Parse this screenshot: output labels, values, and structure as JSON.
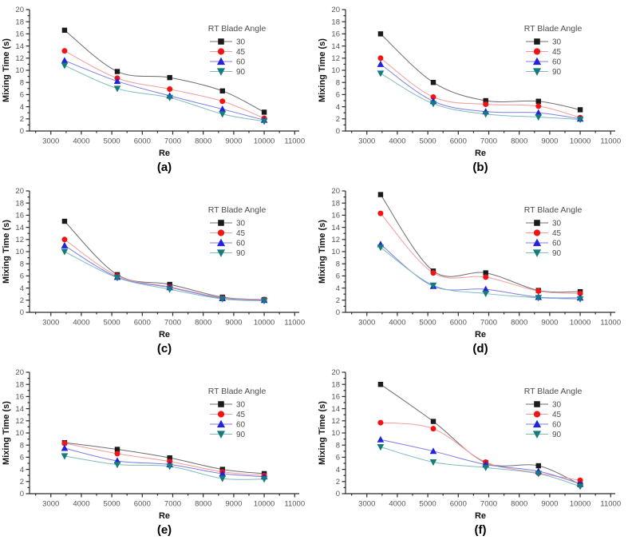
{
  "page": {
    "background": "#ffffff"
  },
  "axes_config": {
    "xlabel": "Re",
    "ylabel": "Mixing Time (s)",
    "xlim": [
      2300,
      11150
    ],
    "ylim": [
      0,
      20
    ],
    "x_major_ticks": [
      3000,
      4000,
      5000,
      6000,
      7000,
      8000,
      9000,
      10000,
      11000
    ],
    "x_minor_step": 500,
    "y_major_step": 2,
    "y_minor_step": 1,
    "grid": "off",
    "tick_label_color": "#555555",
    "axis_color": "#2b2b2b",
    "label_color": "#111111"
  },
  "legend": {
    "title": "RT Blade Angle",
    "position": "upper-right-inside",
    "text_color": "#4d4d4d",
    "items": [
      {
        "label": "30",
        "marker": "square",
        "marker_color": "#1a1a1a",
        "line_color": "#6e6e6e"
      },
      {
        "label": "45",
        "marker": "circle",
        "marker_color": "#f21414",
        "line_color": "#f59a9a"
      },
      {
        "label": "60",
        "marker": "triangle-up",
        "marker_color": "#2323dd",
        "line_color": "#7d7de8"
      },
      {
        "label": "90",
        "marker": "triangle-down",
        "marker_color": "#137c7c",
        "line_color": "#7ebcbc"
      }
    ]
  },
  "chart_data": [
    {
      "type": "line",
      "panel_label": "(a)",
      "xlabel": "Re",
      "ylabel": "Mixing Time (s)",
      "x": [
        3450,
        5180,
        6900,
        8630,
        10000
      ],
      "series": [
        {
          "name": "30",
          "values": [
            16.6,
            9.8,
            8.8,
            6.6,
            3.1
          ]
        },
        {
          "name": "45",
          "values": [
            13.2,
            8.7,
            6.9,
            4.9,
            2.1
          ]
        },
        {
          "name": "60",
          "values": [
            11.6,
            8.2,
            5.8,
            3.6,
            1.8
          ]
        },
        {
          "name": "90",
          "values": [
            10.8,
            7.0,
            5.5,
            2.8,
            1.6
          ]
        }
      ]
    },
    {
      "type": "line",
      "panel_label": "(b)",
      "xlabel": "Re",
      "ylabel": "Mixing Time (s)",
      "x": [
        3450,
        5180,
        6900,
        8630,
        10000
      ],
      "series": [
        {
          "name": "30",
          "values": [
            16.0,
            8.0,
            5.0,
            4.9,
            3.5
          ]
        },
        {
          "name": "45",
          "values": [
            12.0,
            5.6,
            4.4,
            4.1,
            2.2
          ]
        },
        {
          "name": "60",
          "values": [
            11.0,
            4.9,
            3.2,
            3.0,
            2.0
          ]
        },
        {
          "name": "90",
          "values": [
            9.5,
            4.5,
            2.8,
            2.3,
            1.9
          ]
        }
      ]
    },
    {
      "type": "line",
      "panel_label": "(c)",
      "xlabel": "Re",
      "ylabel": "Mixing Time (s)",
      "x": [
        3450,
        5180,
        6900,
        8630,
        10000
      ],
      "series": [
        {
          "name": "30",
          "values": [
            15.0,
            6.2,
            4.6,
            2.5,
            2.1
          ]
        },
        {
          "name": "45",
          "values": [
            12.0,
            6.0,
            4.2,
            2.4,
            2.1
          ]
        },
        {
          "name": "60",
          "values": [
            11.0,
            5.8,
            4.1,
            2.3,
            2.0
          ]
        },
        {
          "name": "90",
          "values": [
            10.0,
            5.7,
            3.8,
            2.2,
            1.9
          ]
        }
      ]
    },
    {
      "type": "line",
      "panel_label": "(d)",
      "xlabel": "Re",
      "ylabel": "Mixing Time (s)",
      "x": [
        3450,
        5180,
        6900,
        8630,
        10000
      ],
      "series": [
        {
          "name": "30",
          "values": [
            19.4,
            6.8,
            6.5,
            3.6,
            3.4
          ]
        },
        {
          "name": "45",
          "values": [
            16.3,
            6.5,
            5.8,
            3.5,
            3.1
          ]
        },
        {
          "name": "60",
          "values": [
            11.2,
            4.3,
            3.8,
            2.5,
            2.4
          ]
        },
        {
          "name": "90",
          "values": [
            10.7,
            4.45,
            3.1,
            2.4,
            2.2
          ]
        }
      ]
    },
    {
      "type": "line",
      "panel_label": "(e)",
      "xlabel": "Re",
      "ylabel": "Mixing Time (s)",
      "x": [
        3450,
        5180,
        6900,
        8630,
        10000
      ],
      "series": [
        {
          "name": "30",
          "values": [
            8.4,
            7.3,
            5.9,
            4.0,
            3.3
          ]
        },
        {
          "name": "45",
          "values": [
            8.3,
            6.6,
            5.3,
            3.6,
            3.0
          ]
        },
        {
          "name": "60",
          "values": [
            7.5,
            5.4,
            4.8,
            3.3,
            2.8
          ]
        },
        {
          "name": "90",
          "values": [
            6.2,
            4.8,
            4.5,
            2.5,
            2.4
          ]
        }
      ]
    },
    {
      "type": "line",
      "panel_label": "(f)",
      "xlabel": "Re",
      "ylabel": "Mixing Time (s)",
      "x": [
        3450,
        5180,
        6900,
        8630,
        10000
      ],
      "series": [
        {
          "name": "30",
          "values": [
            18.0,
            11.9,
            5.1,
            4.6,
            1.5
          ]
        },
        {
          "name": "45",
          "values": [
            11.7,
            10.7,
            5.2,
            3.4,
            2.2
          ]
        },
        {
          "name": "60",
          "values": [
            8.9,
            7.0,
            4.8,
            3.7,
            1.6
          ]
        },
        {
          "name": "90",
          "values": [
            7.7,
            5.2,
            4.3,
            3.3,
            1.2
          ]
        }
      ]
    }
  ]
}
